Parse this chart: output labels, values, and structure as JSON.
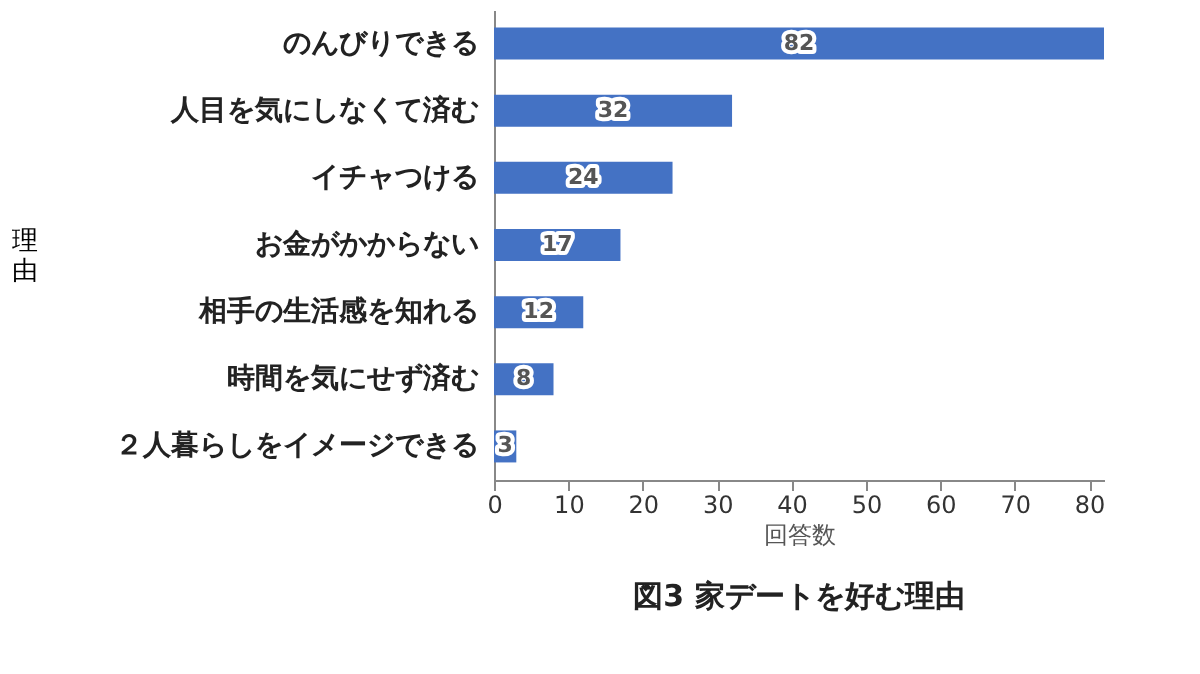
{
  "chart_data": {
    "type": "bar",
    "orientation": "horizontal",
    "title": "図3 家デートを好む理由",
    "xlabel": "回答数",
    "ylabel": "理由",
    "categories": [
      "のんびりできる",
      "人目を気にしなくて済む",
      "イチャつける",
      "お金がかからない",
      "相手の生活感を知れる",
      "時間を気にせず済む",
      "２人暮らしをイメージできる"
    ],
    "values": [
      82,
      32,
      24,
      17,
      12,
      8,
      3
    ],
    "color": "#4472c4",
    "xlim": [
      0,
      82
    ],
    "xticks": [
      0,
      10,
      20,
      30,
      40,
      50,
      60,
      70,
      80
    ],
    "grid": false,
    "data_labels": true
  }
}
